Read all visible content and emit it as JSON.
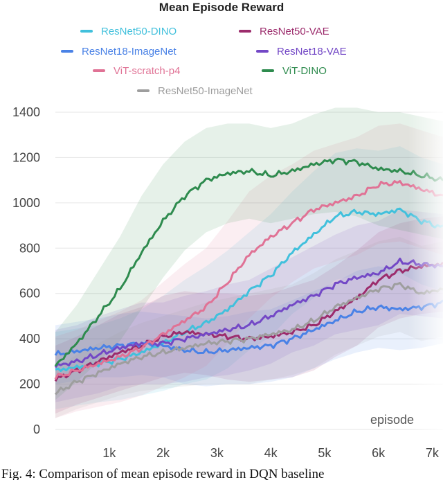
{
  "chart_data": {
    "type": "line",
    "title": "Mean Episode Reward",
    "xlabel": "episode",
    "ylabel": "",
    "xlim": [
      0,
      7200
    ],
    "ylim": [
      0,
      1400
    ],
    "x_ticks": [
      1000,
      2000,
      3000,
      4000,
      5000,
      6000,
      7000
    ],
    "x_tick_labels": [
      "1k",
      "2k",
      "3k",
      "4k",
      "5k",
      "6k",
      "7k"
    ],
    "y_ticks": [
      0,
      200,
      400,
      600,
      800,
      1000,
      1200,
      1400
    ],
    "y_tick_labels": [
      "0",
      "200",
      "400",
      "600",
      "800",
      "1000",
      "1200",
      "1400"
    ],
    "grid": "horizontal",
    "legend_position": "top",
    "caption": "Fig. 4: Comparison of mean episode reward in DQN baseline",
    "series": [
      {
        "name": "ResNet50-DINO",
        "color": "#41c0dc",
        "x": [
          0,
          400,
          800,
          1200,
          1600,
          2000,
          2400,
          2800,
          3200,
          3600,
          4000,
          4400,
          4800,
          5200,
          5600,
          6000,
          6400,
          6800,
          7200
        ],
        "y": [
          260,
          275,
          290,
          310,
          340,
          380,
          430,
          470,
          530,
          610,
          680,
          780,
          860,
          940,
          960,
          950,
          970,
          920,
          890
        ],
        "band": [
          170,
          170,
          170,
          180,
          190,
          210,
          230,
          250,
          260,
          260,
          270,
          270,
          280,
          280,
          280,
          280,
          280,
          280,
          280
        ]
      },
      {
        "name": "ResNet50-VAE",
        "color": "#9c2c6c",
        "x": [
          0,
          400,
          800,
          1200,
          1600,
          2000,
          2400,
          2800,
          3200,
          3600,
          4000,
          4400,
          4800,
          5200,
          5600,
          6000,
          6400,
          6800,
          7200
        ],
        "y": [
          220,
          260,
          300,
          340,
          370,
          410,
          430,
          420,
          410,
          400,
          410,
          430,
          460,
          520,
          580,
          660,
          700,
          720,
          730
        ],
        "band": [
          150,
          150,
          160,
          170,
          170,
          180,
          180,
          180,
          190,
          190,
          190,
          200,
          200,
          200,
          210,
          210,
          210,
          210,
          210
        ]
      },
      {
        "name": "ResNet18-ImageNet",
        "color": "#4a82e6",
        "x": [
          0,
          400,
          800,
          1200,
          1600,
          2000,
          2400,
          2800,
          3200,
          3600,
          4000,
          4400,
          4800,
          5200,
          5600,
          6000,
          6400,
          6800,
          7200
        ],
        "y": [
          330,
          345,
          360,
          370,
          380,
          370,
          350,
          340,
          350,
          360,
          370,
          400,
          440,
          480,
          520,
          540,
          530,
          540,
          560
        ],
        "band": [
          130,
          130,
          130,
          140,
          140,
          140,
          150,
          150,
          150,
          160,
          160,
          170,
          170,
          170,
          180,
          180,
          180,
          180,
          180
        ]
      },
      {
        "name": "ResNet18-VAE",
        "color": "#7348c6",
        "x": [
          0,
          400,
          800,
          1200,
          1600,
          2000,
          2400,
          2800,
          3200,
          3600,
          4000,
          4400,
          4800,
          5200,
          5600,
          6000,
          6400,
          6800,
          7200
        ],
        "y": [
          280,
          300,
          330,
          360,
          380,
          380,
          400,
          420,
          440,
          460,
          500,
          550,
          590,
          640,
          670,
          690,
          740,
          730,
          720
        ],
        "band": [
          160,
          160,
          170,
          170,
          180,
          180,
          190,
          190,
          200,
          200,
          210,
          210,
          220,
          220,
          230,
          230,
          230,
          230,
          230
        ]
      },
      {
        "name": "ViT-scratch-p4",
        "color": "#e07295",
        "x": [
          0,
          400,
          800,
          1200,
          1600,
          2000,
          2400,
          2800,
          3200,
          3600,
          4000,
          4400,
          4800,
          5200,
          5600,
          6000,
          6400,
          6800,
          7200
        ],
        "y": [
          230,
          260,
          290,
          320,
          360,
          420,
          480,
          540,
          650,
          770,
          850,
          910,
          970,
          1000,
          1030,
          1080,
          1090,
          1060,
          1030
        ],
        "band": [
          180,
          180,
          190,
          200,
          210,
          230,
          250,
          260,
          270,
          280,
          270,
          260,
          260,
          260,
          260,
          260,
          260,
          260,
          260
        ]
      },
      {
        "name": "ViT-DINO",
        "color": "#2e8b4e",
        "x": [
          0,
          400,
          800,
          1200,
          1600,
          2000,
          2400,
          2800,
          3200,
          3600,
          4000,
          4400,
          4800,
          5200,
          5600,
          6000,
          6400,
          6800,
          7200
        ],
        "y": [
          280,
          380,
          500,
          620,
          780,
          920,
          1030,
          1100,
          1130,
          1140,
          1120,
          1140,
          1170,
          1190,
          1180,
          1150,
          1140,
          1120,
          1100
        ],
        "band": [
          150,
          170,
          200,
          230,
          250,
          250,
          240,
          230,
          220,
          210,
          210,
          210,
          220,
          230,
          240,
          250,
          260,
          260,
          260
        ]
      },
      {
        "name": "ResNet50-ImageNet",
        "color": "#9e9e9e",
        "x": [
          0,
          400,
          800,
          1200,
          1600,
          2000,
          2400,
          2800,
          3200,
          3600,
          4000,
          4400,
          4800,
          5200,
          5600,
          6000,
          6400,
          6800,
          7200
        ],
        "y": [
          160,
          210,
          250,
          290,
          320,
          340,
          360,
          380,
          390,
          400,
          420,
          440,
          480,
          540,
          580,
          620,
          640,
          600,
          620
        ],
        "band": [
          110,
          120,
          130,
          140,
          150,
          160,
          170,
          180,
          190,
          200,
          200,
          200,
          210,
          210,
          210,
          210,
          210,
          210,
          210
        ]
      }
    ]
  }
}
